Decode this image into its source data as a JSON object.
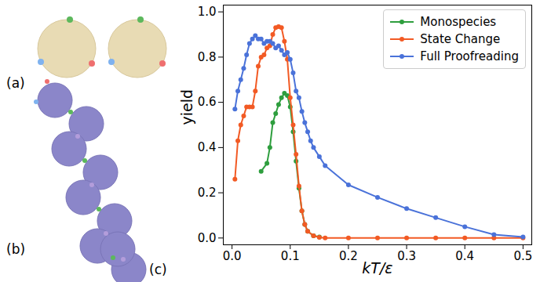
{
  "panel_labels": [
    "(a)",
    "(b)",
    "(c)"
  ],
  "chart_data": {
    "type": "line",
    "xlabel": "kT/ε",
    "ylabel": "yield",
    "xlim": [
      -0.015,
      0.515
    ],
    "ylim": [
      -0.03,
      1.03
    ],
    "xticks": [
      {
        "value": 0,
        "label": "0.0"
      },
      0.1,
      0.2,
      0.3,
      0.4,
      0.5
    ],
    "yticks": [
      {
        "value": 0,
        "label": "0.0"
      },
      0.2,
      0.4,
      0.6,
      0.8,
      {
        "value": 1,
        "label": "1.0"
      }
    ],
    "legend": "upper right",
    "marker": "o",
    "series": [
      {
        "name": "Monospecies",
        "color": "#2e9e3e",
        "x": [
          0.05,
          0.06,
          0.065,
          0.07,
          0.075,
          0.08,
          0.085,
          0.09,
          0.095,
          0.1,
          0.105,
          0.11,
          0.115,
          0.12,
          0.125,
          0.13,
          0.14,
          0.15
        ],
        "values": [
          0.295,
          0.33,
          0.4,
          0.51,
          0.55,
          0.59,
          0.62,
          0.64,
          0.63,
          0.58,
          0.47,
          0.34,
          0.22,
          0.12,
          0.06,
          0.03,
          0.01,
          0.005
        ]
      },
      {
        "name": "State Change",
        "color": "#f25a24",
        "x": [
          0.005,
          0.01,
          0.015,
          0.02,
          0.025,
          0.03,
          0.035,
          0.04,
          0.045,
          0.05,
          0.055,
          0.06,
          0.065,
          0.07,
          0.075,
          0.08,
          0.085,
          0.09,
          0.095,
          0.1,
          0.105,
          0.11,
          0.115,
          0.12,
          0.125,
          0.13,
          0.14,
          0.15,
          0.16,
          0.2,
          0.25,
          0.3,
          0.35,
          0.4,
          0.45,
          0.5
        ],
        "values": [
          0.26,
          0.43,
          0.5,
          0.54,
          0.58,
          0.58,
          0.58,
          0.65,
          0.76,
          0.8,
          0.81,
          0.84,
          0.85,
          0.9,
          0.93,
          0.935,
          0.93,
          0.87,
          0.79,
          0.62,
          0.5,
          0.37,
          0.23,
          0.12,
          0.06,
          0.03,
          0.01,
          0.003,
          0,
          0,
          0,
          0,
          0,
          0,
          0,
          0
        ]
      },
      {
        "name": "Full Proofreading",
        "color": "#4a72d9",
        "x": [
          0.005,
          0.01,
          0.015,
          0.02,
          0.025,
          0.03,
          0.035,
          0.04,
          0.045,
          0.05,
          0.055,
          0.06,
          0.065,
          0.07,
          0.075,
          0.08,
          0.085,
          0.09,
          0.095,
          0.1,
          0.105,
          0.11,
          0.115,
          0.12,
          0.125,
          0.13,
          0.135,
          0.14,
          0.15,
          0.16,
          0.2,
          0.25,
          0.3,
          0.35,
          0.4,
          0.45,
          0.5
        ],
        "values": [
          0.57,
          0.65,
          0.7,
          0.75,
          0.81,
          0.86,
          0.88,
          0.895,
          0.88,
          0.88,
          0.86,
          0.87,
          0.87,
          0.86,
          0.84,
          0.85,
          0.83,
          0.81,
          0.82,
          0.79,
          0.73,
          0.65,
          0.62,
          0.56,
          0.51,
          0.47,
          0.43,
          0.4,
          0.36,
          0.32,
          0.235,
          0.18,
          0.13,
          0.09,
          0.05,
          0.015,
          0.005
        ]
      }
    ]
  }
}
